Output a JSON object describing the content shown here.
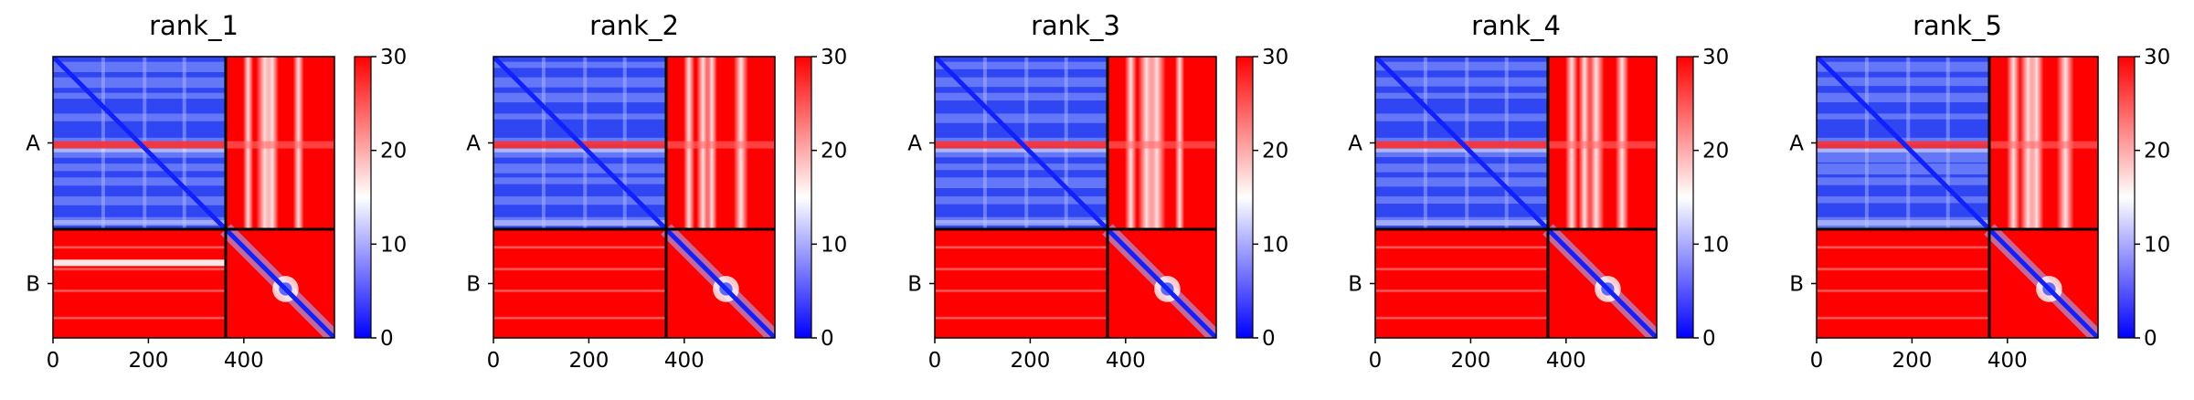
{
  "chart_data": [
    {
      "type": "heatmap",
      "title": "rank_1",
      "xlabel": "",
      "ylabel": "",
      "chains": [
        {
          "label": "A",
          "length": 362
        },
        {
          "label": "B",
          "length": 228
        }
      ],
      "x_ticks": [
        0,
        200,
        400
      ],
      "xlim": [
        0,
        590
      ],
      "colorbar": {
        "ticks": [
          0,
          10,
          20,
          30
        ],
        "range": [
          0,
          30
        ]
      }
    },
    {
      "type": "heatmap",
      "title": "rank_2",
      "xlabel": "",
      "ylabel": "",
      "chains": [
        {
          "label": "A",
          "length": 362
        },
        {
          "label": "B",
          "length": 228
        }
      ],
      "x_ticks": [
        0,
        200,
        400
      ],
      "xlim": [
        0,
        590
      ],
      "colorbar": {
        "ticks": [
          0,
          10,
          20,
          30
        ],
        "range": [
          0,
          30
        ]
      }
    },
    {
      "type": "heatmap",
      "title": "rank_3",
      "xlabel": "",
      "ylabel": "",
      "chains": [
        {
          "label": "A",
          "length": 362
        },
        {
          "label": "B",
          "length": 228
        }
      ],
      "x_ticks": [
        0,
        200,
        400
      ],
      "xlim": [
        0,
        590
      ],
      "colorbar": {
        "ticks": [
          0,
          10,
          20,
          30
        ],
        "range": [
          0,
          30
        ]
      }
    },
    {
      "type": "heatmap",
      "title": "rank_4",
      "xlabel": "",
      "ylabel": "",
      "chains": [
        {
          "label": "A",
          "length": 362
        },
        {
          "label": "B",
          "length": 228
        }
      ],
      "x_ticks": [
        0,
        200,
        400
      ],
      "xlim": [
        0,
        590
      ],
      "colorbar": {
        "ticks": [
          0,
          10,
          20,
          30
        ],
        "range": [
          0,
          30
        ]
      }
    },
    {
      "type": "heatmap",
      "title": "rank_5",
      "xlabel": "",
      "ylabel": "",
      "chains": [
        {
          "label": "A",
          "length": 362
        },
        {
          "label": "B",
          "length": 228
        }
      ],
      "x_ticks": [
        0,
        200,
        400
      ],
      "xlim": [
        0,
        590
      ],
      "colorbar": {
        "ticks": [
          0,
          10,
          20,
          30
        ],
        "range": [
          0,
          30
        ]
      }
    }
  ],
  "colors": {
    "low": "#0000ff",
    "mid": "#ffffff",
    "high": "#ff0000"
  }
}
